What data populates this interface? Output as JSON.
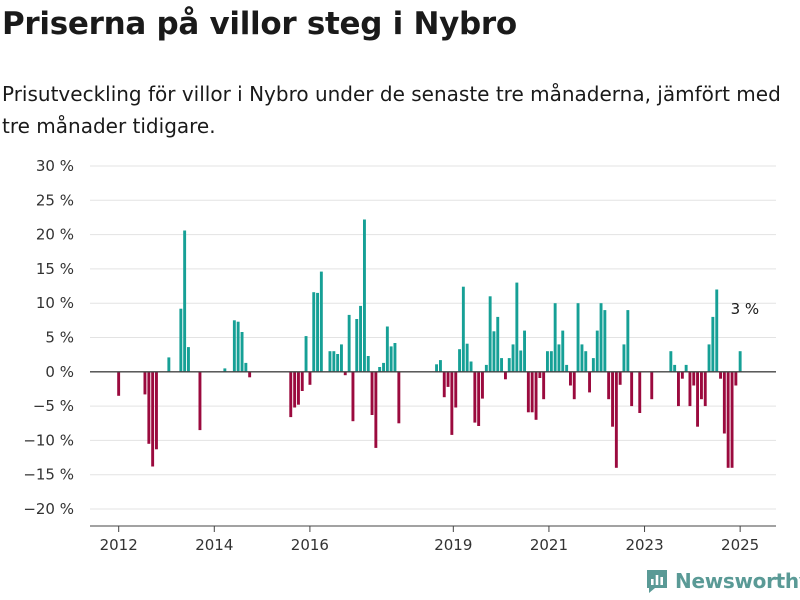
{
  "title": "Priserna på villor steg i Nybro",
  "subtitle": "Prisutveckling för villor i Nybro under de senaste tre månaderna, jämfört med tre månader tidigare.",
  "brand": "Newsworthy",
  "colors": {
    "positive": "#16a096",
    "negative": "#9b0a3e",
    "grid": "#e3e3e3",
    "brand": "#5a9a96"
  },
  "chart_data": {
    "type": "bar",
    "ylim": [
      -20,
      30
    ],
    "y_ticks": [
      30,
      25,
      20,
      15,
      10,
      5,
      0,
      -5,
      -10,
      -15,
      -20
    ],
    "y_tick_labels": [
      "30 %",
      "25 %",
      "20 %",
      "15 %",
      "10 %",
      "5 %",
      "0 %",
      "−5 %",
      "−10 %",
      "−15 %",
      "−20 %"
    ],
    "x_tick_labels": [
      "2012",
      "2014",
      "2016",
      "2019",
      "2021",
      "2023",
      "2025"
    ],
    "x_tick_years": [
      2012,
      2014,
      2016,
      2019,
      2021,
      2023,
      2025
    ],
    "x_range": [
      2011.4,
      2025.75
    ],
    "grid": true,
    "annotation": {
      "text": "3 %",
      "x": 2025.1,
      "y": 3
    },
    "series": [
      {
        "values": [
          [
            2012.0,
            -3.5
          ],
          [
            2012.55,
            -3.3
          ],
          [
            2012.63,
            -10.5
          ],
          [
            2012.71,
            -13.8
          ],
          [
            2012.79,
            -11.3
          ],
          [
            2013.05,
            2.1
          ],
          [
            2013.3,
            9.2
          ],
          [
            2013.38,
            20.6
          ],
          [
            2013.46,
            3.6
          ],
          [
            2013.7,
            -8.5
          ],
          [
            2014.22,
            0.5
          ],
          [
            2014.42,
            7.5
          ],
          [
            2014.5,
            7.3
          ],
          [
            2014.58,
            5.8
          ],
          [
            2014.66,
            1.3
          ],
          [
            2014.74,
            -0.8
          ],
          [
            2015.6,
            -6.6
          ],
          [
            2015.68,
            -5.2
          ],
          [
            2015.76,
            -4.8
          ],
          [
            2015.84,
            -2.8
          ],
          [
            2015.92,
            5.2
          ],
          [
            2016.0,
            -1.9
          ],
          [
            2016.08,
            11.6
          ],
          [
            2016.16,
            11.5
          ],
          [
            2016.24,
            14.6
          ],
          [
            2016.42,
            3.0
          ],
          [
            2016.5,
            3.0
          ],
          [
            2016.58,
            2.6
          ],
          [
            2016.66,
            4.0
          ],
          [
            2016.74,
            -0.5
          ],
          [
            2016.82,
            8.3
          ],
          [
            2016.9,
            -7.2
          ],
          [
            2016.98,
            7.7
          ],
          [
            2017.06,
            9.6
          ],
          [
            2017.14,
            22.2
          ],
          [
            2017.22,
            2.3
          ],
          [
            2017.3,
            -6.3
          ],
          [
            2017.38,
            -11.1
          ],
          [
            2017.46,
            0.7
          ],
          [
            2017.54,
            1.3
          ],
          [
            2017.62,
            6.6
          ],
          [
            2017.7,
            3.7
          ],
          [
            2017.78,
            4.2
          ],
          [
            2017.86,
            -7.5
          ],
          [
            2018.65,
            1.1
          ],
          [
            2018.73,
            1.7
          ],
          [
            2018.81,
            -3.7
          ],
          [
            2018.89,
            -2.2
          ],
          [
            2018.97,
            -9.2
          ],
          [
            2019.05,
            -5.2
          ],
          [
            2019.13,
            3.3
          ],
          [
            2019.21,
            12.4
          ],
          [
            2019.29,
            4.1
          ],
          [
            2019.37,
            1.5
          ],
          [
            2019.45,
            -7.4
          ],
          [
            2019.53,
            -7.9
          ],
          [
            2019.61,
            -3.9
          ],
          [
            2019.69,
            1.0
          ],
          [
            2019.77,
            11.0
          ],
          [
            2019.85,
            5.9
          ],
          [
            2019.93,
            8.0
          ],
          [
            2020.01,
            2.0
          ],
          [
            2020.09,
            -1.1
          ],
          [
            2020.17,
            2.0
          ],
          [
            2020.25,
            4.0
          ],
          [
            2020.33,
            13.0
          ],
          [
            2020.41,
            3.1
          ],
          [
            2020.49,
            6.0
          ],
          [
            2020.57,
            -5.9
          ],
          [
            2020.65,
            -5.9
          ],
          [
            2020.73,
            -7.0
          ],
          [
            2020.81,
            -0.9
          ],
          [
            2020.89,
            -4.0
          ],
          [
            2020.97,
            3.0
          ],
          [
            2021.05,
            3.0
          ],
          [
            2021.13,
            10.0
          ],
          [
            2021.21,
            4.0
          ],
          [
            2021.29,
            6.0
          ],
          [
            2021.37,
            1.0
          ],
          [
            2021.45,
            -2.0
          ],
          [
            2021.53,
            -4.0
          ],
          [
            2021.61,
            10.0
          ],
          [
            2021.69,
            4.0
          ],
          [
            2021.77,
            3.0
          ],
          [
            2021.85,
            -3.0
          ],
          [
            2021.93,
            2.0
          ],
          [
            2022.01,
            6.0
          ],
          [
            2022.09,
            10.0
          ],
          [
            2022.17,
            9.0
          ],
          [
            2022.25,
            -4.0
          ],
          [
            2022.33,
            -8.0
          ],
          [
            2022.41,
            -14.0
          ],
          [
            2022.49,
            -1.9
          ],
          [
            2022.57,
            4.0
          ],
          [
            2022.65,
            9.0
          ],
          [
            2022.73,
            -5.0
          ],
          [
            2022.9,
            -6.0
          ],
          [
            2023.15,
            -4.0
          ],
          [
            2023.55,
            3.0
          ],
          [
            2023.63,
            1.0
          ],
          [
            2023.71,
            -5.0
          ],
          [
            2023.79,
            -1.0
          ],
          [
            2023.87,
            1.0
          ],
          [
            2023.95,
            -5.0
          ],
          [
            2024.03,
            -2.0
          ],
          [
            2024.11,
            -8.0
          ],
          [
            2024.19,
            -4.0
          ],
          [
            2024.27,
            -5.0
          ],
          [
            2024.35,
            4.0
          ],
          [
            2024.43,
            8.0
          ],
          [
            2024.51,
            12.0
          ],
          [
            2024.59,
            -1.0
          ],
          [
            2024.67,
            -9.0
          ],
          [
            2024.75,
            -14.0
          ],
          [
            2024.83,
            -14.0
          ],
          [
            2024.91,
            -2.0
          ],
          [
            2025.0,
            3.0
          ]
        ]
      }
    ]
  }
}
